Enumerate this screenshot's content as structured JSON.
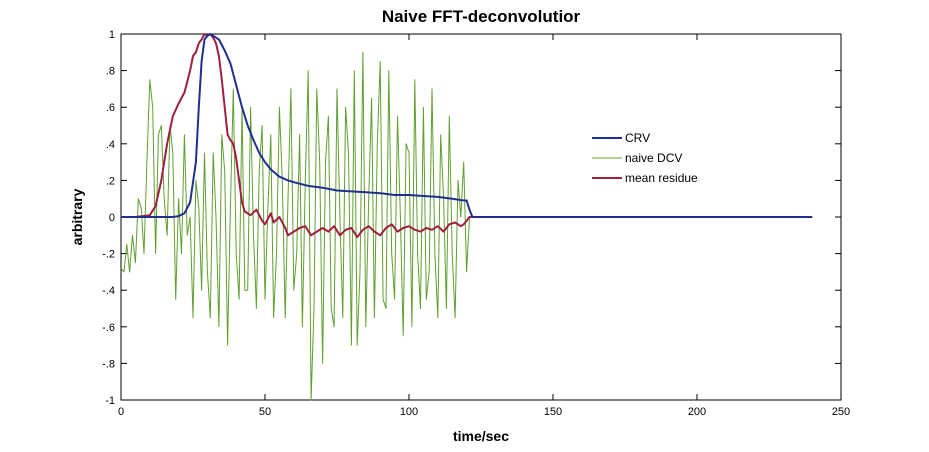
{
  "chart_data": {
    "type": "line",
    "title": "Naive FFT-deconvolutior",
    "xlabel": "time/sec",
    "ylabel": "arbitrary",
    "xlim": [
      0,
      250
    ],
    "ylim": [
      -1,
      1
    ],
    "xticks": [
      0,
      50,
      100,
      150,
      200,
      250
    ],
    "yticks": [
      -1,
      -0.8,
      -0.6,
      -0.4,
      -0.2,
      0,
      0.2,
      0.4,
      0.6,
      0.8,
      1
    ],
    "grid": false,
    "legend_position": "right-center",
    "series": [
      {
        "name": "CRV",
        "color": "#1f2f8f",
        "width": 2,
        "x": [
          0,
          10,
          18,
          20,
          22,
          24,
          26,
          27,
          28,
          29,
          30,
          31,
          32,
          34,
          36,
          38,
          40,
          42,
          44,
          46,
          48,
          50,
          52,
          55,
          58,
          60,
          65,
          70,
          75,
          80,
          85,
          90,
          95,
          100,
          105,
          110,
          115,
          119,
          120,
          121,
          122,
          130,
          160,
          200,
          240
        ],
        "y": [
          0,
          0,
          0,
          0.005,
          0.02,
          0.08,
          0.3,
          0.6,
          0.85,
          0.97,
          0.99,
          1.0,
          0.99,
          0.97,
          0.91,
          0.84,
          0.72,
          0.6,
          0.5,
          0.42,
          0.35,
          0.3,
          0.26,
          0.22,
          0.2,
          0.19,
          0.17,
          0.16,
          0.145,
          0.14,
          0.135,
          0.13,
          0.12,
          0.12,
          0.115,
          0.11,
          0.1,
          0.09,
          0.09,
          0.04,
          0.0,
          0.0,
          0.0,
          0.0,
          0.0
        ]
      },
      {
        "name": "naive DCV",
        "color": "#5f9f2f",
        "width": 1,
        "x": [
          0,
          1,
          2,
          3,
          4,
          5,
          6,
          7,
          8,
          9,
          10,
          11,
          12,
          13,
          14,
          15,
          16,
          17,
          18,
          19,
          20,
          21,
          22,
          23,
          24,
          25,
          26,
          27,
          28,
          29,
          30,
          31,
          32,
          33,
          34,
          35,
          36,
          37,
          38,
          39,
          40,
          41,
          42,
          43,
          44,
          45,
          46,
          47,
          48,
          49,
          50,
          51,
          52,
          53,
          54,
          55,
          56,
          57,
          58,
          59,
          60,
          61,
          62,
          63,
          64,
          65,
          66,
          67,
          68,
          69,
          70,
          71,
          72,
          73,
          74,
          75,
          76,
          77,
          78,
          79,
          80,
          81,
          82,
          83,
          84,
          85,
          86,
          87,
          88,
          89,
          90,
          91,
          92,
          93,
          94,
          95,
          96,
          97,
          98,
          99,
          100,
          101,
          102,
          103,
          104,
          105,
          106,
          107,
          108,
          109,
          110,
          111,
          112,
          113,
          114,
          115,
          116,
          117,
          118,
          119,
          120,
          121,
          122
        ],
        "y": [
          -0.28,
          -0.3,
          -0.15,
          -0.3,
          -0.1,
          -0.25,
          0.1,
          0.05,
          -0.2,
          0.3,
          0.75,
          0.6,
          -0.2,
          0.45,
          0.5,
          0.1,
          -0.1,
          0.5,
          0.35,
          -0.45,
          0.1,
          -0.2,
          0.45,
          -0.1,
          0.0,
          -0.55,
          0.2,
          0.05,
          -0.4,
          0.35,
          -0.3,
          -0.55,
          0.35,
          0.0,
          -0.6,
          0.45,
          0.25,
          -0.7,
          0.05,
          0.7,
          -0.2,
          -0.45,
          0.6,
          -0.4,
          -0.4,
          0.6,
          -0.1,
          -0.5,
          0.25,
          0.5,
          -0.45,
          0.05,
          0.45,
          -0.55,
          -0.2,
          0.6,
          0.2,
          -0.55,
          0.1,
          0.7,
          -0.4,
          -0.2,
          0.45,
          -0.6,
          0.2,
          0.8,
          -1.0,
          -0.5,
          0.7,
          0.3,
          -0.8,
          0.3,
          0.55,
          -0.5,
          -0.6,
          0.7,
          0.0,
          -0.55,
          0.6,
          0.35,
          -0.7,
          0.8,
          -0.7,
          -0.3,
          0.9,
          -0.6,
          0.1,
          0.65,
          -0.55,
          0.4,
          0.85,
          -0.45,
          -0.5,
          0.8,
          -0.2,
          -0.45,
          0.55,
          0.0,
          -0.65,
          0.4,
          0.35,
          -0.6,
          0.75,
          -0.2,
          -0.5,
          0.6,
          -0.45,
          -0.3,
          0.7,
          -0.2,
          -0.55,
          0.45,
          0.1,
          -0.5,
          0.55,
          -0.2,
          -0.55,
          0.2,
          0.0,
          0.3,
          -0.3,
          0.0,
          0.0
        ]
      },
      {
        "name": "mean residue",
        "color": "#9f1f3f",
        "width": 2,
        "x": [
          0,
          5,
          10,
          12,
          14,
          16,
          18,
          20,
          22,
          24,
          25,
          26,
          27,
          28,
          29,
          30,
          31,
          32,
          33,
          34,
          35,
          36,
          37,
          38,
          39,
          40,
          41,
          42,
          43,
          45,
          47,
          49,
          50,
          52,
          53,
          55,
          57,
          58,
          60,
          62,
          64,
          66,
          68,
          70,
          72,
          74,
          76,
          78,
          80,
          82,
          84,
          86,
          88,
          90,
          92,
          94,
          96,
          98,
          100,
          102,
          104,
          106,
          108,
          110,
          112,
          114,
          116,
          118,
          119,
          120,
          121,
          122,
          130,
          160,
          200,
          240
        ],
        "y": [
          0,
          0,
          0.01,
          0.06,
          0.2,
          0.4,
          0.55,
          0.62,
          0.68,
          0.8,
          0.88,
          0.9,
          0.95,
          0.97,
          1.0,
          0.99,
          1.0,
          0.98,
          0.95,
          0.88,
          0.75,
          0.6,
          0.45,
          0.42,
          0.4,
          0.32,
          0.2,
          0.08,
          0.03,
          0.01,
          0.04,
          -0.02,
          -0.04,
          0.02,
          -0.03,
          0.0,
          -0.06,
          -0.1,
          -0.08,
          -0.06,
          -0.05,
          -0.1,
          -0.08,
          -0.06,
          -0.08,
          -0.05,
          -0.1,
          -0.07,
          -0.06,
          -0.11,
          -0.07,
          -0.05,
          -0.08,
          -0.1,
          -0.06,
          -0.04,
          -0.08,
          -0.06,
          -0.05,
          -0.07,
          -0.08,
          -0.06,
          -0.07,
          -0.05,
          -0.08,
          -0.04,
          -0.03,
          -0.05,
          -0.04,
          -0.02,
          0.0,
          0.0,
          0.0,
          0.0,
          0.0,
          0.0
        ]
      }
    ]
  }
}
